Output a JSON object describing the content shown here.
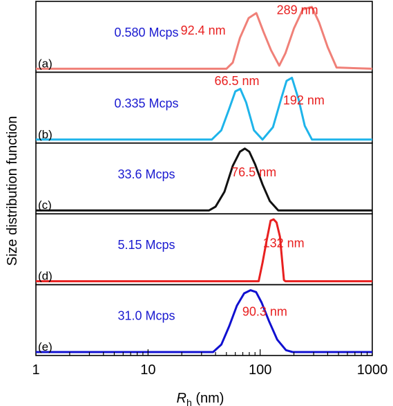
{
  "chart_data": {
    "type": "line",
    "ylabel": "Size distribution function",
    "xlabel_main": "R",
    "xlabel_sub": "h",
    "xlabel_unit": " (nm)",
    "xscale": "log",
    "xlim": [
      1,
      1000
    ],
    "xticks": [
      1,
      10,
      100,
      1000
    ],
    "xtick_labels": [
      "1",
      "10",
      "100",
      "1000"
    ],
    "grid": false,
    "panels": [
      {
        "label": "(a)",
        "intensity": "0.580 Mcps",
        "color": "#f08078",
        "annotations": [
          {
            "text": "92.4 nm",
            "x": 31,
            "y": 0.55
          },
          {
            "text": "289 nm",
            "x": 215,
            "y": 0.88
          }
        ],
        "points": [
          [
            1,
            0
          ],
          [
            50,
            0
          ],
          [
            57,
            0.1
          ],
          [
            66,
            0.5
          ],
          [
            79,
            0.82
          ],
          [
            92.4,
            0.9
          ],
          [
            107,
            0.6
          ],
          [
            125,
            0.3
          ],
          [
            148,
            0.05
          ],
          [
            168,
            0.25
          ],
          [
            200,
            0.65
          ],
          [
            240,
            0.96
          ],
          [
            289,
            1.0
          ],
          [
            335,
            0.75
          ],
          [
            400,
            0.35
          ],
          [
            480,
            0.02
          ],
          [
            1000,
            0
          ]
        ]
      },
      {
        "label": "(b)",
        "intensity": "0.335 Mcps",
        "color": "#1eb4ea",
        "annotations": [
          {
            "text": "66.5 nm",
            "x": 62,
            "y": 0.88
          },
          {
            "text": "192 nm",
            "x": 245,
            "y": 0.57
          }
        ],
        "points": [
          [
            1,
            0
          ],
          [
            37,
            0
          ],
          [
            45,
            0.15
          ],
          [
            53,
            0.5
          ],
          [
            60,
            0.78
          ],
          [
            66.5,
            0.82
          ],
          [
            75,
            0.6
          ],
          [
            88,
            0.15
          ],
          [
            105,
            0.0
          ],
          [
            130,
            0.2
          ],
          [
            155,
            0.68
          ],
          [
            172,
            0.95
          ],
          [
            192,
            1.0
          ],
          [
            220,
            0.65
          ],
          [
            250,
            0.22
          ],
          [
            290,
            0
          ],
          [
            1000,
            0
          ]
        ]
      },
      {
        "label": "(c)",
        "intensity": "33.6 Mcps",
        "color": "#111111",
        "annotations": [
          {
            "text": "76.5 nm",
            "x": 88,
            "y": 0.55
          }
        ],
        "points": [
          [
            1,
            0
          ],
          [
            35,
            0
          ],
          [
            40,
            0.06
          ],
          [
            48,
            0.3
          ],
          [
            57,
            0.72
          ],
          [
            66,
            0.95
          ],
          [
            73,
            1.0
          ],
          [
            80,
            0.95
          ],
          [
            90,
            0.75
          ],
          [
            105,
            0.42
          ],
          [
            122,
            0.15
          ],
          [
            145,
            0.0
          ],
          [
            1000,
            0
          ]
        ]
      },
      {
        "label": "(d)",
        "intensity": "5.15 Mcps",
        "color": "#e82020",
        "annotations": [
          {
            "text": "132 nm",
            "x": 162,
            "y": 0.55
          }
        ],
        "points": [
          [
            1,
            0
          ],
          [
            97,
            0
          ],
          [
            105,
            0.3
          ],
          [
            114,
            0.65
          ],
          [
            124,
            0.98
          ],
          [
            132,
            1.0
          ],
          [
            140,
            0.95
          ],
          [
            150,
            0.72
          ],
          [
            163,
            0.02
          ],
          [
            168,
            0
          ],
          [
            1000,
            0
          ]
        ]
      },
      {
        "label": "(e)",
        "intensity": "31.0 Mcps",
        "color": "#1010d0",
        "annotations": [
          {
            "text": "90.3 nm",
            "x": 110,
            "y": 0.59
          }
        ],
        "points": [
          [
            1,
            0
          ],
          [
            38,
            0
          ],
          [
            45,
            0.12
          ],
          [
            53,
            0.42
          ],
          [
            62,
            0.75
          ],
          [
            72,
            0.95
          ],
          [
            82,
            1.0
          ],
          [
            92,
            0.97
          ],
          [
            103,
            0.8
          ],
          [
            120,
            0.5
          ],
          [
            142,
            0.2
          ],
          [
            170,
            0.03
          ],
          [
            195,
            0
          ],
          [
            1000,
            0
          ]
        ]
      }
    ]
  }
}
